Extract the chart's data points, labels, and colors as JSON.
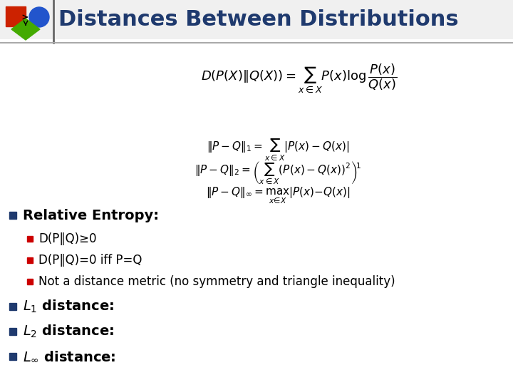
{
  "title": "Distances Between Distributions",
  "title_color": "#1F3A6E",
  "title_fontsize": 22,
  "bg_color": "#FFFFFF",
  "header_line_color": "#AAAAAA",
  "bullet_color": "#1F3A6E",
  "sub_bullet_color": "#CC0000",
  "bullet_fontsize": 14,
  "sub_bullet_fontsize": 12,
  "formula1": "$D(P(X)\\|Q(X)) = \\sum_{x\\in X} P(x)\\log\\dfrac{P(x)}{Q(x)}$",
  "formula2_1": "$\\|P - Q\\|_1 = \\sum_{x\\in X} |P(x) - Q(x)|$",
  "formula2_2": "$\\|P - Q\\|_2 = \\left(\\sum_{x\\in X} (P(x) - Q(x))^2\\right)^{\\!1}$",
  "formula2_3": "$\\|P - Q\\|_{\\infty} = \\max_{x\\in X} |P(x) - Q(x)|$",
  "sub_bullet_1": "D(P‖Q)≥0",
  "sub_bullet_2": "D(P‖Q)=0 iff P=Q",
  "sub_bullet_3": "Not a distance metric (no symmetry and triangle inequality)",
  "main_bullet_0": "Relative Entropy:",
  "main_bullet_1": "$L_1$ distance:",
  "main_bullet_2": "$L_2$ distance:",
  "main_bullet_3": "$L_{\\infty}$ distance:",
  "icon_red": "#CC2200",
  "icon_blue": "#2255CC",
  "icon_green": "#44AA00",
  "sep_line_color": "#666666"
}
